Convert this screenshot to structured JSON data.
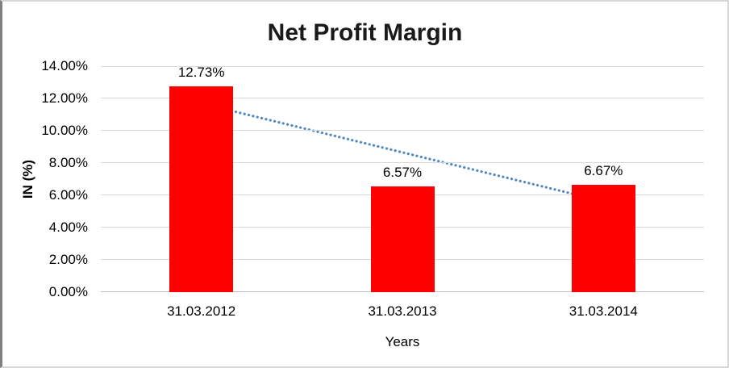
{
  "chart_data": {
    "type": "bar",
    "title": "Net Profit Margin",
    "xlabel": "Years",
    "ylabel": "IN (%)",
    "categories": [
      "31.03.2012",
      "31.03.2013",
      "31.03.2014"
    ],
    "values": [
      12.73,
      6.57,
      6.67
    ],
    "data_labels": [
      "12.73%",
      "6.57%",
      "6.67%"
    ],
    "ylim": [
      0,
      14
    ],
    "ytick_step": 2,
    "ytick_labels": [
      "14.00%",
      "12.00%",
      "10.00%",
      "8.00%",
      "6.00%",
      "4.00%",
      "2.00%",
      "0.00%"
    ],
    "grid": "on",
    "legend": "none",
    "trendline": {
      "type": "linear",
      "style": "dotted",
      "start_value": 11.69,
      "end_value": 5.63
    },
    "colors": {
      "bar": "#ff0000",
      "trendline": "#4f87c5",
      "gridline": "#d9d9d9",
      "axis_line": "#bfbfbf",
      "title_text": "#1a1a1a",
      "text": "#000000"
    }
  }
}
